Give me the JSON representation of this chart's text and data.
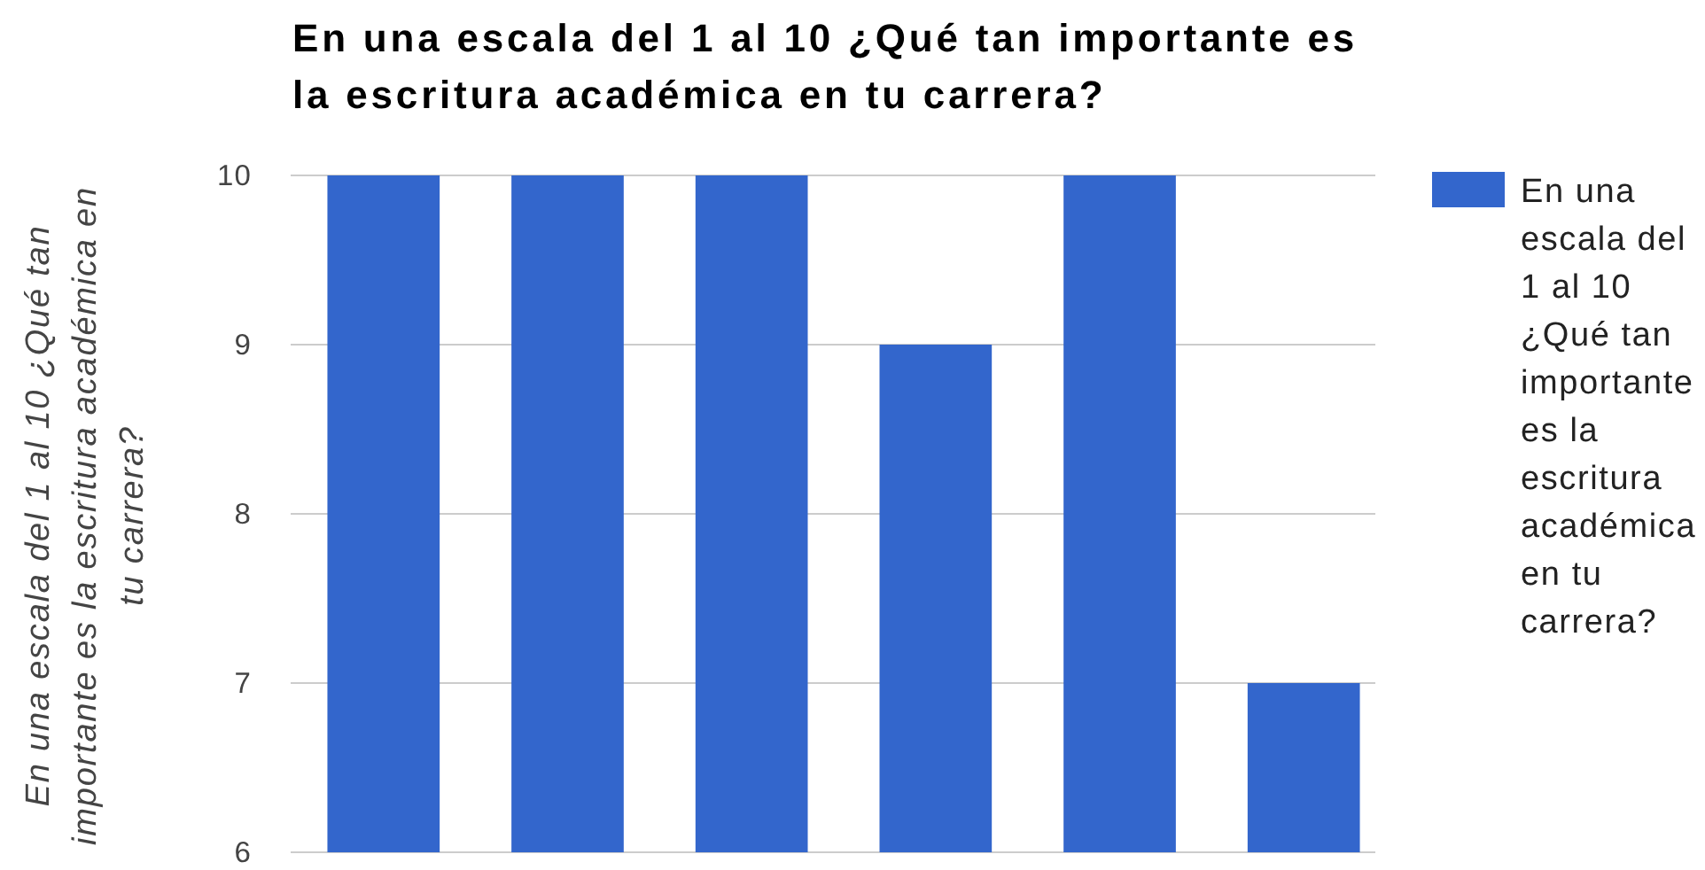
{
  "chart_data": {
    "type": "bar",
    "title": "En una escala del 1 al 10 ¿Qué tan importante es la escritura académica en tu carrera?",
    "ylabel": "En una escala del 1 al 10 ¿Qué tan importante es la escritura académica en tu carrera?",
    "categories": [
      null,
      null,
      null,
      null,
      null,
      null
    ],
    "series": [
      {
        "name": "En una escala del 1 al 10 ¿Qué tan importante es la escritura académica en tu carrera?",
        "color": "#3366cc",
        "values": [
          10,
          10,
          10,
          9,
          10,
          7
        ]
      }
    ],
    "ylim": [
      6,
      10
    ],
    "yticks": [
      6,
      7,
      8,
      9,
      10
    ],
    "grid": "y",
    "legend": "right"
  }
}
